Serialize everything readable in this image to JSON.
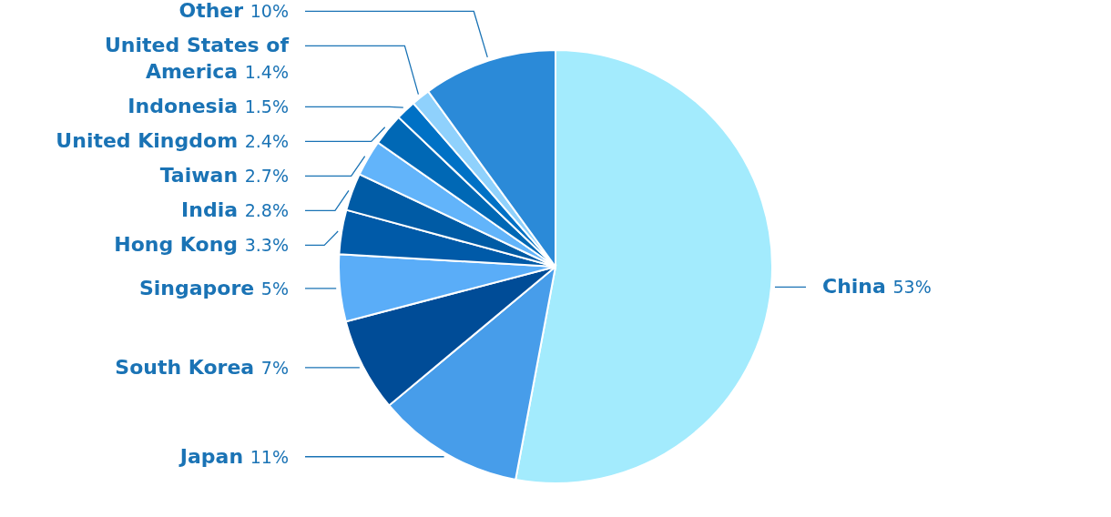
{
  "chart_data": {
    "type": "pie",
    "categories": [
      "China",
      "Japan",
      "South Korea",
      "Singapore",
      "Hong Kong",
      "India",
      "Taiwan",
      "United Kingdom",
      "Indonesia",
      "United States of America",
      "Other"
    ],
    "values": [
      53,
      11,
      7,
      5,
      3.3,
      2.8,
      2.7,
      2.4,
      1.5,
      1.4,
      10
    ],
    "colors": [
      "#a3ebfd",
      "#479dea",
      "#004c97",
      "#5aadf8",
      "#005aa8",
      "#005ba5",
      "#62b4fa",
      "#0068b5",
      "#0071c5",
      "#8fd1fc",
      "#2b8ad8"
    ],
    "value_labels": [
      "53%",
      "11%",
      "7%",
      "5%",
      "3.3%",
      "2.8%",
      "2.7%",
      "2.4%",
      "1.5%",
      "1.4%",
      "10%"
    ]
  }
}
